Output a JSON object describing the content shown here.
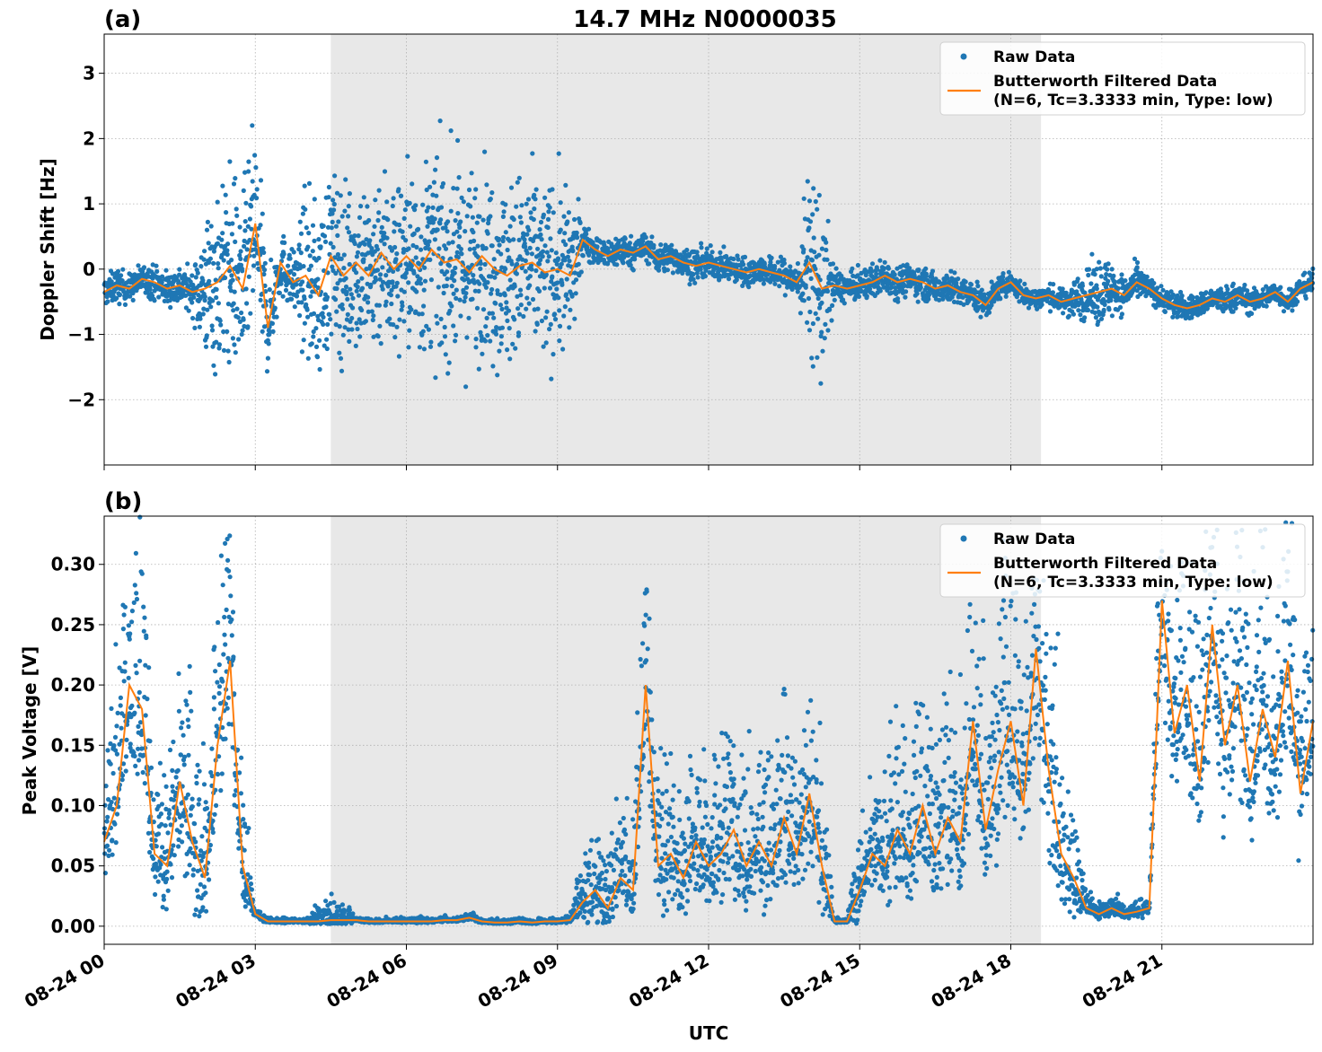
{
  "figure": {
    "title": "14.7 MHz N0000035",
    "xlabel": "UTC"
  },
  "colors": {
    "raw": "#1f77b4",
    "filtered": "#ff7f0e",
    "shade": "#e8e8e8",
    "grid": "#b0b0b0"
  },
  "chart_data": [
    {
      "type": "scatter",
      "panel_label": "(a)",
      "ylabel": "Doppler Shift [Hz]",
      "xlim_hours": [
        0,
        24
      ],
      "ylim": [
        -3.0,
        3.6
      ],
      "yticks": [
        -2,
        -1,
        0,
        1,
        2,
        3
      ],
      "ytick_labels": [
        "−2",
        "−1",
        "0",
        "1",
        "2",
        "3"
      ],
      "xticks_hours": [
        0,
        3,
        6,
        9,
        12,
        15,
        18,
        21
      ],
      "xtick_labels": [
        "08-24 00",
        "08-24 03",
        "08-24 06",
        "08-24 09",
        "08-24 12",
        "08-24 15",
        "08-24 18",
        "08-24 21"
      ],
      "shaded_span_hours": [
        4.5,
        18.6
      ],
      "grid": true,
      "legend": {
        "placement": "upper right",
        "entries": [
          "Raw Data",
          "Butterworth Filtered Data",
          "(N=6, Tc=3.3333 min, Type: low)"
        ]
      },
      "series": [
        {
          "name": "Butterworth Filtered Data",
          "x_hours": [
            0,
            0.25,
            0.5,
            0.75,
            1,
            1.25,
            1.5,
            1.75,
            2,
            2.25,
            2.5,
            2.75,
            3,
            3.25,
            3.5,
            3.75,
            4,
            4.25,
            4.5,
            4.75,
            5,
            5.25,
            5.5,
            5.75,
            6,
            6.25,
            6.5,
            6.75,
            7,
            7.25,
            7.5,
            7.75,
            8,
            8.25,
            8.5,
            8.75,
            9,
            9.25,
            9.5,
            9.75,
            10,
            10.25,
            10.5,
            10.75,
            11,
            11.25,
            11.5,
            11.75,
            12,
            12.25,
            12.5,
            12.75,
            13,
            13.25,
            13.5,
            13.75,
            14,
            14.25,
            14.5,
            14.75,
            15,
            15.25,
            15.5,
            15.75,
            16,
            16.25,
            16.5,
            16.75,
            17,
            17.25,
            17.5,
            17.75,
            18,
            18.25,
            18.5,
            18.75,
            19,
            19.25,
            19.5,
            19.75,
            20,
            20.25,
            20.5,
            20.75,
            21,
            21.25,
            21.5,
            21.75,
            22,
            22.25,
            22.5,
            22.75,
            23,
            23.25,
            23.5,
            23.75,
            24
          ],
          "values": [
            -0.35,
            -0.25,
            -0.3,
            -0.15,
            -0.2,
            -0.3,
            -0.25,
            -0.35,
            -0.3,
            -0.2,
            0.05,
            -0.3,
            0.7,
            -0.9,
            0.1,
            -0.2,
            -0.1,
            -0.4,
            0.2,
            -0.1,
            0.1,
            -0.1,
            0.25,
            0.0,
            0.2,
            0.0,
            0.3,
            0.1,
            0.15,
            -0.05,
            0.2,
            0.0,
            -0.1,
            0.05,
            0.1,
            -0.05,
            0.0,
            -0.1,
            0.45,
            0.3,
            0.2,
            0.3,
            0.25,
            0.35,
            0.15,
            0.2,
            0.1,
            0.05,
            0.1,
            0.05,
            0.0,
            -0.05,
            0.0,
            -0.05,
            -0.1,
            -0.2,
            0.1,
            -0.3,
            -0.25,
            -0.3,
            -0.25,
            -0.2,
            -0.1,
            -0.2,
            -0.15,
            -0.2,
            -0.3,
            -0.25,
            -0.35,
            -0.4,
            -0.55,
            -0.3,
            -0.2,
            -0.4,
            -0.45,
            -0.4,
            -0.5,
            -0.45,
            -0.4,
            -0.35,
            -0.3,
            -0.4,
            -0.2,
            -0.3,
            -0.45,
            -0.55,
            -0.6,
            -0.55,
            -0.45,
            -0.5,
            -0.4,
            -0.5,
            -0.45,
            -0.35,
            -0.5,
            -0.3,
            -0.2
          ]
        }
      ],
      "raw_spread_hz": [
        0.25,
        0.3,
        0.25,
        0.25,
        0.3,
        0.3,
        0.35,
        0.35,
        1.2,
        1.6,
        1.7,
        1.6,
        1.7,
        0.8,
        0.6,
        0.5,
        1.4,
        1.5,
        1.5,
        1.5,
        1.5,
        1.6,
        1.6,
        1.6,
        1.6,
        1.6,
        1.7,
        1.7,
        1.7,
        1.7,
        1.6,
        1.6,
        1.6,
        1.6,
        1.6,
        1.5,
        1.5,
        1.4,
        0.3,
        0.25,
        0.25,
        0.3,
        0.25,
        0.25,
        0.25,
        0.25,
        0.25,
        0.3,
        0.25,
        0.25,
        0.25,
        0.25,
        0.25,
        0.25,
        0.3,
        0.3,
        1.6,
        1.6,
        0.3,
        0.25,
        0.25,
        0.3,
        0.3,
        0.3,
        0.25,
        0.3,
        0.25,
        0.3,
        0.25,
        0.25,
        0.25,
        0.2,
        0.2,
        0.2,
        0.2,
        0.2,
        0.2,
        0.35,
        0.4,
        0.6,
        0.5,
        0.3,
        0.3,
        0.2,
        0.2,
        0.25,
        0.2,
        0.2,
        0.2,
        0.25,
        0.25,
        0.2,
        0.2,
        0.2,
        0.2,
        0.2,
        0.2
      ]
    },
    {
      "type": "scatter",
      "panel_label": "(b)",
      "ylabel": "Peak Voltage [V]",
      "xlim_hours": [
        0,
        24
      ],
      "ylim": [
        -0.015,
        0.34
      ],
      "yticks": [
        0.0,
        0.05,
        0.1,
        0.15,
        0.2,
        0.25,
        0.3
      ],
      "ytick_labels": [
        "0.00",
        "0.05",
        "0.10",
        "0.15",
        "0.20",
        "0.25",
        "0.30"
      ],
      "xticks_hours": [
        0,
        3,
        6,
        9,
        12,
        15,
        18,
        21
      ],
      "xtick_labels": [
        "08-24 00",
        "08-24 03",
        "08-24 06",
        "08-24 09",
        "08-24 12",
        "08-24 15",
        "08-24 18",
        "08-24 21"
      ],
      "shaded_span_hours": [
        4.5,
        18.6
      ],
      "grid": true,
      "legend": {
        "placement": "upper right",
        "entries": [
          "Raw Data",
          "Butterworth Filtered Data",
          "(N=6, Tc=3.3333 min, Type: low)"
        ]
      },
      "series": [
        {
          "name": "Butterworth Filtered Data",
          "x_hours": [
            0,
            0.25,
            0.5,
            0.75,
            1,
            1.25,
            1.5,
            1.75,
            2,
            2.25,
            2.5,
            2.75,
            3,
            3.25,
            3.5,
            3.75,
            4,
            4.25,
            4.5,
            4.75,
            5,
            5.25,
            5.5,
            5.75,
            6,
            6.25,
            6.5,
            6.75,
            7,
            7.25,
            7.5,
            7.75,
            8,
            8.25,
            8.5,
            8.75,
            9,
            9.25,
            9.5,
            9.75,
            10,
            10.25,
            10.5,
            10.75,
            11,
            11.25,
            11.5,
            11.75,
            12,
            12.25,
            12.5,
            12.75,
            13,
            13.25,
            13.5,
            13.75,
            14,
            14.25,
            14.5,
            14.75,
            15,
            15.25,
            15.5,
            15.75,
            16,
            16.25,
            16.5,
            16.75,
            17,
            17.25,
            17.5,
            17.75,
            18,
            18.25,
            18.5,
            18.75,
            19,
            19.25,
            19.5,
            19.75,
            20,
            20.25,
            20.5,
            20.75,
            21,
            21.25,
            21.5,
            21.75,
            22,
            22.25,
            22.5,
            22.75,
            23,
            23.25,
            23.5,
            23.75,
            24
          ],
          "values": [
            0.07,
            0.1,
            0.2,
            0.18,
            0.06,
            0.05,
            0.12,
            0.07,
            0.04,
            0.15,
            0.22,
            0.05,
            0.01,
            0.004,
            0.004,
            0.004,
            0.004,
            0.004,
            0.005,
            0.005,
            0.005,
            0.004,
            0.004,
            0.004,
            0.004,
            0.004,
            0.004,
            0.005,
            0.005,
            0.007,
            0.004,
            0.003,
            0.003,
            0.004,
            0.003,
            0.004,
            0.004,
            0.005,
            0.02,
            0.03,
            0.015,
            0.04,
            0.03,
            0.2,
            0.05,
            0.06,
            0.04,
            0.07,
            0.05,
            0.06,
            0.08,
            0.05,
            0.07,
            0.05,
            0.09,
            0.06,
            0.11,
            0.05,
            0.004,
            0.004,
            0.03,
            0.06,
            0.05,
            0.08,
            0.06,
            0.1,
            0.06,
            0.09,
            0.07,
            0.17,
            0.08,
            0.13,
            0.17,
            0.1,
            0.23,
            0.13,
            0.06,
            0.04,
            0.015,
            0.01,
            0.015,
            0.01,
            0.012,
            0.015,
            0.27,
            0.16,
            0.2,
            0.12,
            0.25,
            0.15,
            0.2,
            0.12,
            0.18,
            0.14,
            0.22,
            0.11,
            0.17
          ]
        }
      ],
      "raw_spread_v": [
        0.04,
        0.07,
        0.11,
        0.12,
        0.05,
        0.05,
        0.08,
        0.09,
        0.07,
        0.08,
        0.09,
        0.05,
        0.004,
        0.002,
        0.002,
        0.002,
        0.002,
        0.01,
        0.015,
        0.01,
        0.002,
        0.002,
        0.002,
        0.002,
        0.002,
        0.002,
        0.002,
        0.002,
        0.002,
        0.003,
        0.002,
        0.002,
        0.002,
        0.002,
        0.002,
        0.002,
        0.002,
        0.003,
        0.03,
        0.04,
        0.03,
        0.04,
        0.04,
        0.09,
        0.06,
        0.06,
        0.05,
        0.06,
        0.06,
        0.06,
        0.07,
        0.06,
        0.06,
        0.06,
        0.07,
        0.06,
        0.08,
        0.06,
        0.002,
        0.002,
        0.04,
        0.05,
        0.05,
        0.06,
        0.06,
        0.07,
        0.07,
        0.08,
        0.08,
        0.1,
        0.09,
        0.1,
        0.11,
        0.1,
        0.12,
        0.1,
        0.08,
        0.05,
        0.01,
        0.006,
        0.008,
        0.006,
        0.007,
        0.008,
        0.1,
        0.1,
        0.1,
        0.1,
        0.1,
        0.1,
        0.1,
        0.1,
        0.1,
        0.1,
        0.1,
        0.08,
        0.08
      ]
    }
  ]
}
